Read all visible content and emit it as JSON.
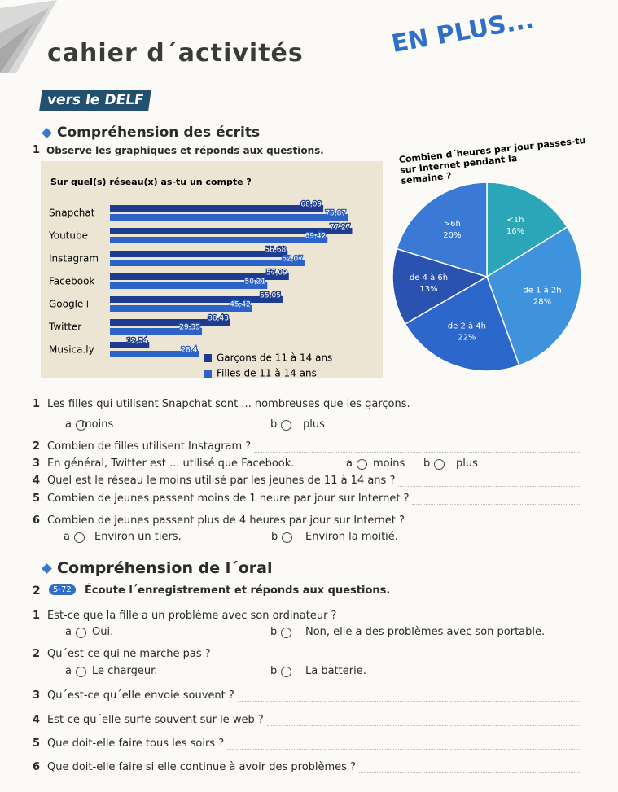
{
  "header": {
    "title": "cahier d´activités",
    "badge": "EN PLUS..."
  },
  "reading": {
    "tag": "vers le DELF",
    "heading": "Compréhension des écrits",
    "exercise_number": "1",
    "instruction": "Observe les graphiques et réponds aux questions.",
    "questions": [
      {
        "number": "1",
        "text": "Les filles qui utilisent Snapchat sont ... nombreuses que les garçons.",
        "options": [
          {
            "letter": "a",
            "text": "moins"
          },
          {
            "letter": "b",
            "text": "plus"
          }
        ]
      },
      {
        "number": "2",
        "text": "Combien de filles utilisent Instagram ?"
      },
      {
        "number": "3",
        "text": "En général, Twitter est ... utilisé que Facebook.",
        "options": [
          {
            "letter": "a",
            "text": "moins"
          },
          {
            "letter": "b",
            "text": "plus"
          }
        ]
      },
      {
        "number": "4",
        "text": "Quel est le réseau le moins utilisé par les jeunes de 11 à 14 ans ?"
      },
      {
        "number": "5",
        "text": "Combien de jeunes passent moins de 1 heure par jour sur Internet ?"
      },
      {
        "number": "6",
        "text": "Combien de jeunes passent plus de 4 heures par jour sur Internet ?",
        "options": [
          {
            "letter": "a",
            "text": "Environ un tiers."
          },
          {
            "letter": "b",
            "text": "Environ la moitié."
          }
        ]
      }
    ]
  },
  "chart_data": [
    {
      "type": "bar",
      "title": "Sur quel(s) réseau(x) as-tu un compte ?",
      "categories": [
        "Snapchat",
        "Youtube",
        "Instagram",
        "Facebook",
        "Google+",
        "Twitter",
        "Musica.ly"
      ],
      "series": [
        {
          "name": "Garçons de 11 à 14 ans",
          "color": "#1d3c8f",
          "values": [
            68.09,
            77.27,
            56.68,
            57.09,
            55.05,
            38.43,
            12.54
          ],
          "value_labels": [
            "68,09",
            "77,27",
            "56,68",
            "57,09",
            "55,05",
            "38,43",
            "12,54"
          ]
        },
        {
          "name": "Filles de 11 à 14 ans",
          "color": "#2d62c6",
          "values": [
            75.87,
            69.42,
            62.07,
            50.21,
            45.42,
            29.35,
            28.4
          ],
          "value_labels": [
            "75,87",
            "69,42",
            "62,07",
            "50,21",
            "45,42",
            "29,35",
            "28,4"
          ]
        }
      ]
    },
    {
      "type": "pie",
      "title": "Combien d´heures par jour passes-tu sur Internet pendant la semaine ?",
      "categories": [
        "<1h",
        "de 1 à 2h",
        "de 2 à 4h",
        "de 4 à 6h",
        ">6h"
      ],
      "values": [
        16,
        28,
        22,
        13,
        20
      ],
      "value_labels": [
        "16%",
        "28%",
        "22%",
        "13%",
        "20%"
      ],
      "colors": [
        "#2aa6b8",
        "#3f93dc",
        "#2c68cc",
        "#2a52b0",
        "#3a7ad4"
      ]
    }
  ],
  "listening": {
    "heading": "Compréhension de l´oral",
    "exercise_number": "2",
    "track": "5-72",
    "instruction": "Écoute l´enregistrement et réponds aux questions.",
    "questions": [
      {
        "number": "1",
        "text": "Est-ce que la fille a un problème avec son ordinateur ?",
        "options": [
          {
            "letter": "a",
            "text": "Oui."
          },
          {
            "letter": "b",
            "text": "Non, elle a des problèmes avec son portable."
          }
        ]
      },
      {
        "number": "2",
        "text": "Qu´est-ce qui ne marche pas ?",
        "options": [
          {
            "letter": "a",
            "text": "Le chargeur."
          },
          {
            "letter": "b",
            "text": "La batterie."
          }
        ]
      },
      {
        "number": "3",
        "text": "Qu´est-ce qu´elle envoie souvent ?"
      },
      {
        "number": "4",
        "text": "Est-ce qu´elle surfe souvent sur le web ?"
      },
      {
        "number": "5",
        "text": "Que doit-elle faire tous les soirs ?"
      },
      {
        "number": "6",
        "text": "Que doit-elle faire si elle continue à avoir des problèmes ?"
      }
    ]
  }
}
